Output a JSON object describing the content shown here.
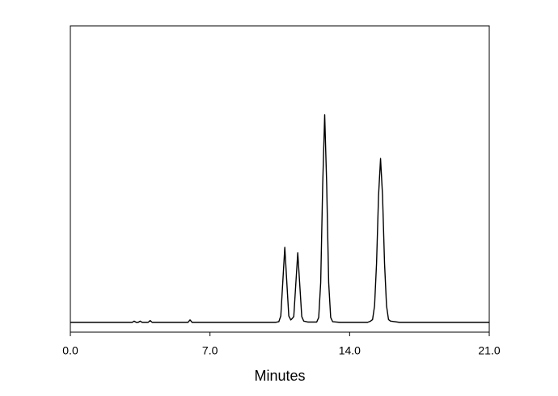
{
  "chart_data": {
    "type": "line",
    "xlabel": "Minutes",
    "x": [
      0,
      3.1,
      3.2,
      3.3,
      3.4,
      3.5,
      3.6,
      3.9,
      4.0,
      4.1,
      5.9,
      6.0,
      6.1,
      10.3,
      10.45,
      10.55,
      10.65,
      10.75,
      10.85,
      10.95,
      11.05,
      11.1,
      11.2,
      11.3,
      11.4,
      11.5,
      11.6,
      11.7,
      11.9,
      12.35,
      12.45,
      12.55,
      12.65,
      12.75,
      12.85,
      12.95,
      13.05,
      13.15,
      13.5,
      14.9,
      15.05,
      15.15,
      15.25,
      15.35,
      15.45,
      15.55,
      15.65,
      15.75,
      15.85,
      15.95,
      16.05,
      16.5,
      21
    ],
    "values": [
      3.2,
      3.2,
      3.6,
      3.2,
      3.2,
      3.6,
      3.2,
      3.2,
      3.8,
      3.2,
      3.2,
      4.0,
      3.2,
      3.2,
      3.4,
      5.3,
      16.4,
      27.7,
      16.4,
      5.3,
      4.0,
      4.3,
      5.1,
      15.5,
      25.9,
      15.5,
      5.1,
      3.6,
      3.3,
      3.3,
      4.8,
      16.2,
      48.1,
      71.0,
      48.1,
      16.2,
      4.8,
      3.4,
      3.2,
      3.2,
      3.6,
      4.1,
      8.6,
      22.5,
      44.6,
      56.7,
      44.6,
      22.5,
      8.6,
      4.1,
      3.6,
      3.2,
      3.2
    ],
    "color": "#000000",
    "xlim": [
      0,
      21
    ],
    "xticks": [
      {
        "value": 0,
        "label": "0.0"
      },
      {
        "value": 7,
        "label": "7.0"
      },
      {
        "value": 14,
        "label": "14.0"
      },
      {
        "value": 21,
        "label": "21.0"
      }
    ],
    "ylim": [
      0,
      100
    ]
  }
}
